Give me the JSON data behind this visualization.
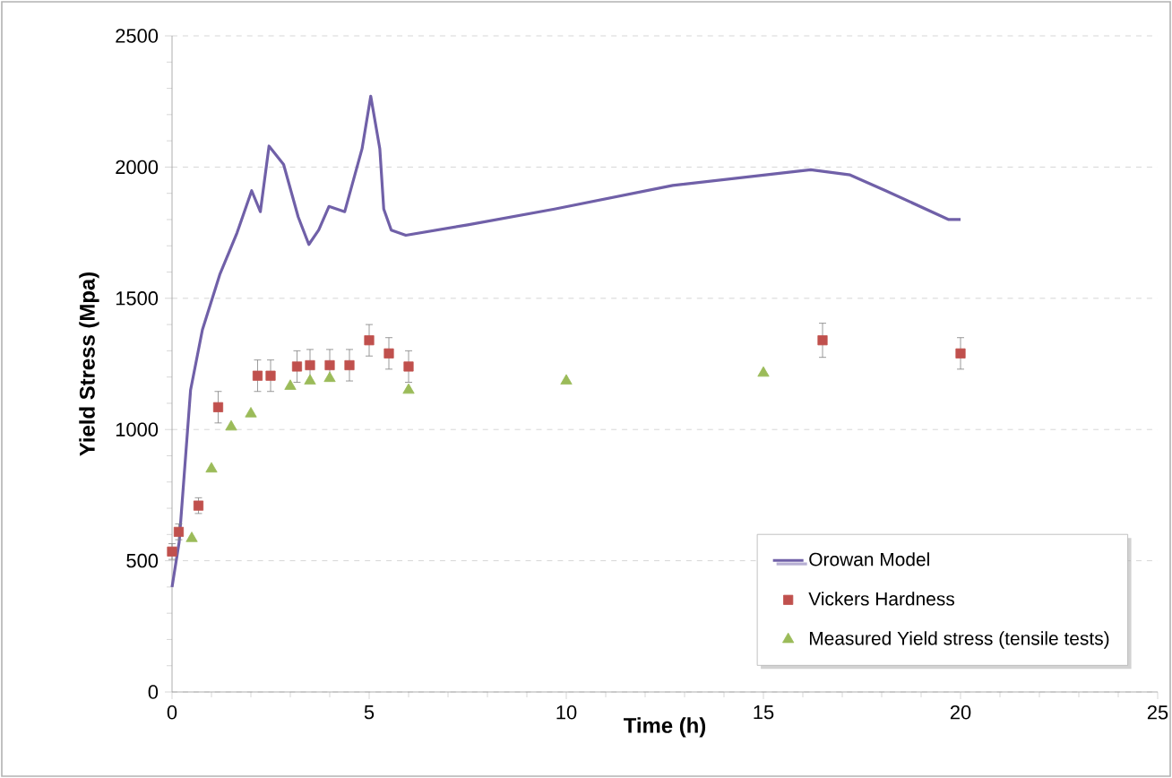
{
  "chart_data": {
    "type": "scatter",
    "xlabel": "Time (h)",
    "ylabel": "Yield Stress (Mpa)",
    "xlim": [
      0,
      25
    ],
    "xticks": [
      0,
      5,
      10,
      15,
      20,
      25
    ],
    "ylim": [
      0,
      2500
    ],
    "yticks": [
      0,
      500,
      1000,
      1500,
      2000,
      2500
    ],
    "grid": "y",
    "legend": "bottom right",
    "series": [
      {
        "name": "Orowan Model",
        "type": "line",
        "marker": "none",
        "color": "#7060a8",
        "x": [
          0,
          0.18,
          0.47,
          0.77,
          1.21,
          1.65,
          2.02,
          2.24,
          2.46,
          2.83,
          3.2,
          3.47,
          3.72,
          3.98,
          4.38,
          4.82,
          5.04,
          5.27,
          5.37,
          5.56,
          5.93,
          7.5,
          9.7,
          12.7,
          16.2,
          17.2,
          18.1,
          19.7,
          20
        ],
        "values": [
          400,
          570,
          1150,
          1380,
          1590,
          1750,
          1910,
          1830,
          2080,
          2010,
          1810,
          1705,
          1760,
          1850,
          1830,
          2070,
          2270,
          2070,
          1840,
          1760,
          1740,
          1780,
          1840,
          1930,
          1990,
          1970,
          1910,
          1800,
          1800
        ]
      },
      {
        "name": "Vickers Hardness",
        "marker": "square",
        "color": "#c0504d",
        "x": [
          0,
          0.17,
          0.67,
          1.17,
          2.17,
          2.5,
          3.17,
          3.5,
          4,
          4.5,
          5,
          5.5,
          6,
          16.5,
          20
        ],
        "values": [
          535,
          610,
          710,
          1085,
          1205,
          1205,
          1240,
          1245,
          1245,
          1245,
          1340,
          1290,
          1240,
          1340,
          1290
        ],
        "errors": [
          30,
          30,
          30,
          60,
          60,
          60,
          60,
          60,
          60,
          60,
          60,
          60,
          60,
          65,
          60
        ]
      },
      {
        "name": "Measured Yield stress (tensile tests)",
        "marker": "triangle",
        "color": "#9bbb59",
        "x": [
          0.5,
          1,
          1.5,
          2,
          3,
          3.5,
          4,
          6,
          10,
          15
        ],
        "values": [
          585,
          850,
          1010,
          1060,
          1165,
          1185,
          1195,
          1150,
          1185,
          1215
        ]
      }
    ]
  }
}
